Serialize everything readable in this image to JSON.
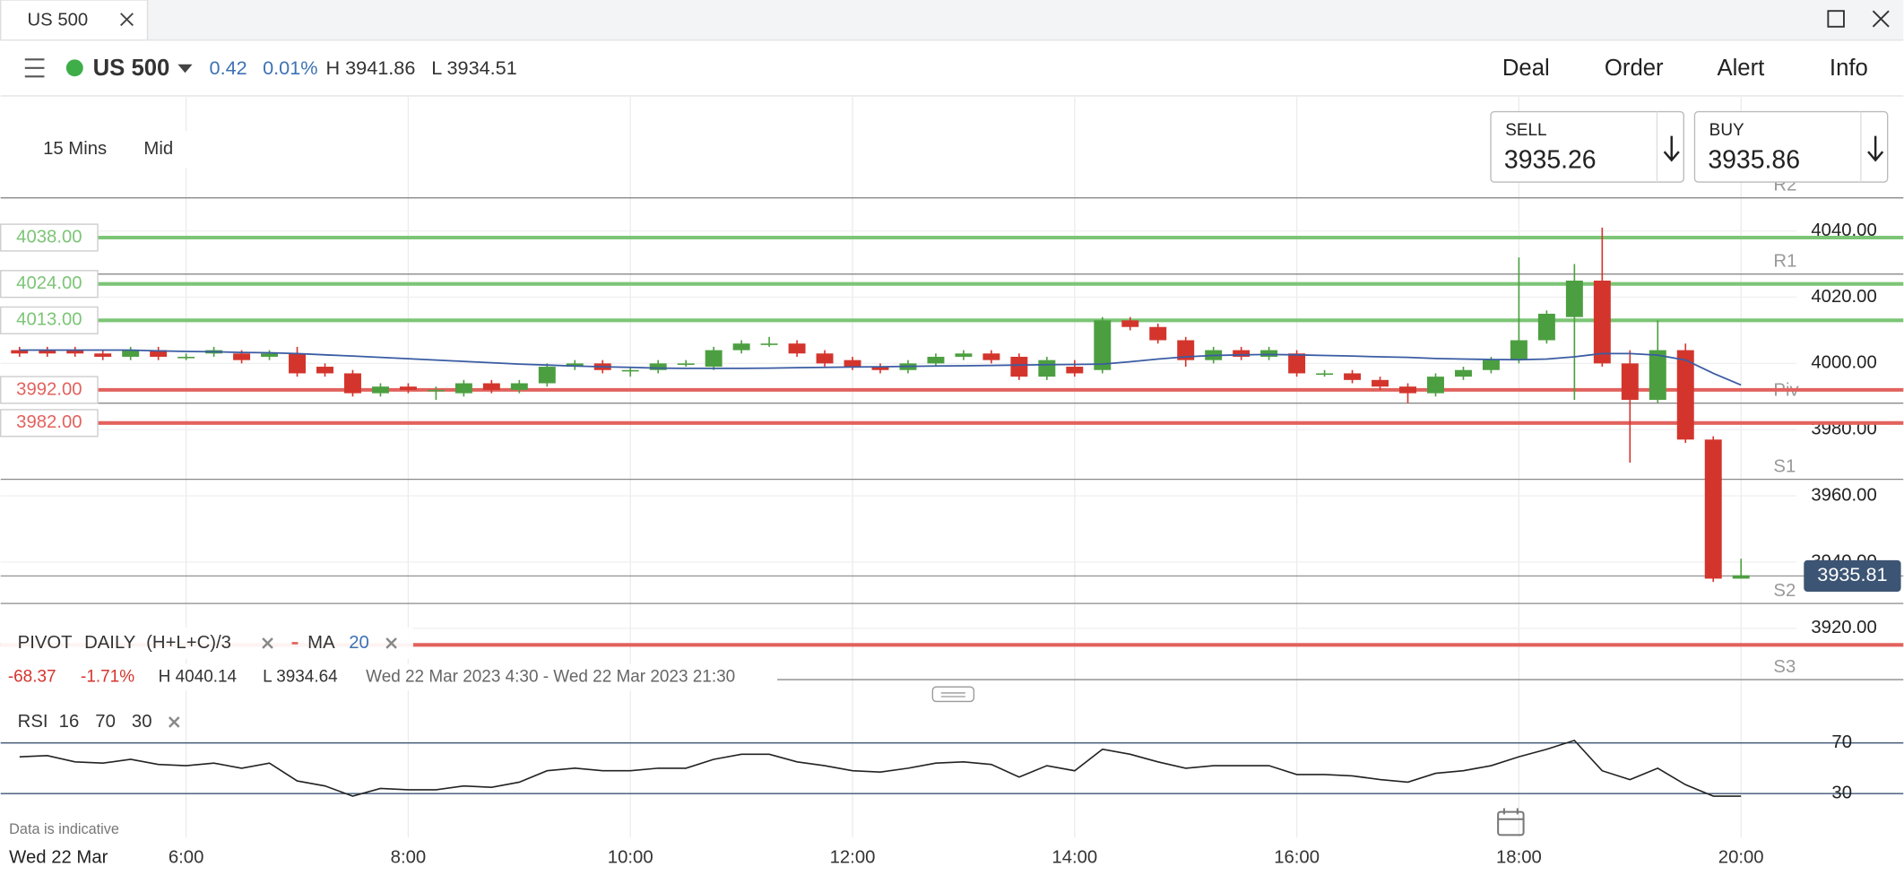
{
  "tab": {
    "title": "US 500"
  },
  "toolbar": {
    "instrument": "US 500",
    "change": "0.42",
    "change_pct": "0.01%",
    "high": "H 3941.86",
    "low": "L 3934.51",
    "actions": [
      "Deal",
      "Order",
      "Alert",
      "Info"
    ]
  },
  "ticket": {
    "sell_label": "SELL",
    "sell_price": "3935.26",
    "buy_label": "BUY",
    "buy_price": "3935.86"
  },
  "chart_data": {
    "type": "candlestick",
    "interval": "15 Mins",
    "price_type": "Mid",
    "x": [
      4.5,
      4.75,
      5,
      5.25,
      5.5,
      5.75,
      6,
      6.25,
      6.5,
      6.75,
      7,
      7.25,
      7.5,
      7.75,
      8,
      8.25,
      8.5,
      8.75,
      9,
      9.25,
      9.5,
      9.75,
      10,
      10.25,
      10.5,
      10.75,
      11,
      11.25,
      11.5,
      11.75,
      12,
      12.25,
      12.5,
      12.75,
      13,
      13.25,
      13.5,
      13.75,
      14,
      14.25,
      14.5,
      14.75,
      15,
      15.25,
      15.5,
      15.75,
      16,
      16.25,
      16.5,
      16.75,
      17,
      17.25,
      17.5,
      17.75,
      18,
      18.25,
      18.5,
      18.75,
      19,
      19.25,
      19.5,
      19.75,
      20
    ],
    "open": [
      4004,
      4004,
      4004,
      4003,
      4002,
      4004,
      4002,
      4003,
      4003,
      4002,
      4003,
      3999,
      3997,
      3991,
      3993,
      3992,
      3991,
      3994,
      3992,
      3994,
      3999,
      4000,
      3998,
      3998,
      4000,
      3999,
      4004,
      4006,
      4006,
      4003,
      4001,
      3999,
      3998,
      4000,
      4002,
      4003,
      4002,
      3996,
      3999,
      3998,
      4013,
      4011,
      4007,
      4001,
      4004,
      4002,
      4003,
      3997,
      3997,
      3995,
      3993,
      3991,
      3996,
      3998,
      4001,
      4007,
      4014,
      4025,
      4000,
      3989,
      4004,
      3977,
      3935
    ],
    "high": [
      4005,
      4005,
      4005,
      4004,
      4005,
      4005,
      4003,
      4005,
      4004,
      4004,
      4005,
      4000,
      3998,
      3994,
      3994,
      3993,
      3995,
      3995,
      3995,
      4000,
      4001,
      4001,
      3999,
      4001,
      4001,
      4005,
      4007,
      4008,
      4007,
      4004,
      4002,
      4000,
      4001,
      4003,
      4004,
      4004,
      4003,
      4002,
      4001,
      4014,
      4014,
      4012,
      4008,
      4005,
      4005,
      4005,
      4004,
      3998,
      3998,
      3996,
      3994,
      3997,
      3999,
      4002,
      4032,
      4016,
      4030,
      4041,
      4004,
      4013,
      4006,
      3978,
      3941
    ],
    "low": [
      4002,
      4002,
      4002,
      4001,
      4001,
      4001,
      4001,
      4002,
      4000,
      4001,
      3996,
      3996,
      3990,
      3990,
      3991,
      3989,
      3990,
      3991,
      3991,
      3993,
      3998,
      3997,
      3996,
      3997,
      3999,
      3998,
      4003,
      4005,
      4002,
      3999,
      3998,
      3997,
      3997,
      3999,
      4001,
      4000,
      3995,
      3995,
      3996,
      3997,
      4010,
      4006,
      3999,
      4000,
      4001,
      4001,
      3996,
      3996,
      3994,
      3992,
      3988,
      3990,
      3995,
      3997,
      4000,
      4006,
      3989,
      3999,
      3970,
      3988,
      3976,
      3934,
      3935
    ],
    "close": [
      4003,
      4003,
      4003,
      4002,
      4004,
      4002,
      4002,
      4004,
      4001,
      4003,
      3997,
      3997,
      3991,
      3993,
      3992,
      3992,
      3994,
      3992,
      3994,
      3999,
      4000,
      3998,
      3998,
      4000,
      4000,
      4004,
      4006,
      4006,
      4003,
      4000,
      3999,
      3998,
      4000,
      4002,
      4003,
      4001,
      3996,
      4001,
      3997,
      4013,
      4011,
      4007,
      4001,
      4004,
      4002,
      4004,
      3997,
      3997,
      3995,
      3993,
      3991,
      3996,
      3998,
      4001,
      4007,
      4015,
      4025,
      4000,
      3989,
      4004,
      3977,
      3935,
      3936
    ],
    "up_color": "#4c9f40",
    "down_color": "#d3352d",
    "ma": {
      "name": "MA",
      "period": 20,
      "color": "#3a5ca3",
      "values": [
        4004,
        4004,
        4004,
        4004,
        4004,
        4003.8,
        4003.6,
        4003.5,
        4003.3,
        4003.2,
        4003,
        4002.6,
        4002.2,
        4001.8,
        4001.4,
        4001,
        4000.6,
        4000.2,
        3999.8,
        3999.5,
        3999.2,
        3999,
        3998.8,
        3998.6,
        3998.5,
        3998.5,
        3998.5,
        3998.6,
        3998.7,
        3998.8,
        3998.9,
        3999,
        3999.1,
        3999.2,
        3999.3,
        3999.4,
        3999.5,
        3999.6,
        3999.7,
        3999.8,
        4000.5,
        4001.3,
        4002,
        4002.4,
        4002.6,
        4002.7,
        4002.6,
        4002.4,
        4002.2,
        4002,
        4001.8,
        4001.5,
        4001.3,
        4001.2,
        4001.1,
        4001.3,
        4002,
        4003,
        4003,
        4002.5,
        4001,
        3997,
        3993.5
      ]
    },
    "xlim": [
      4.33,
      20.5
    ],
    "xticks": [
      {
        "value": 6,
        "label": "6:00"
      },
      {
        "value": 8,
        "label": "8:00"
      },
      {
        "value": 10,
        "label": "10:00"
      },
      {
        "value": 12,
        "label": "12:00"
      },
      {
        "value": 14,
        "label": "14:00"
      },
      {
        "value": 16,
        "label": "16:00"
      },
      {
        "value": 18,
        "label": "18:00"
      },
      {
        "value": 20,
        "label": "20:00"
      }
    ],
    "ylim": [
      3910,
      4077.5
    ],
    "yticks": [
      {
        "value": 3920,
        "label": "3920.00"
      },
      {
        "value": 3940,
        "label": "3940.00"
      },
      {
        "value": 3960,
        "label": "3960.00"
      },
      {
        "value": 3980,
        "label": "3980.00"
      },
      {
        "value": 4000,
        "label": "4000.00"
      },
      {
        "value": 4020,
        "label": "4020.00"
      },
      {
        "value": 4040,
        "label": "4040.00"
      }
    ],
    "grid": true,
    "pivots": [
      {
        "label": "R2",
        "value": 4050
      },
      {
        "label": "R1",
        "value": 4027
      },
      {
        "label": "Piv",
        "value": 3988
      },
      {
        "label": "S1",
        "value": 3965
      },
      {
        "label": "S2",
        "value": 3927.5
      },
      {
        "label": "S3",
        "value": 3904.5
      }
    ],
    "levels": [
      {
        "value": 4038,
        "label": "4038.00",
        "color": "#7cc576"
      },
      {
        "value": 4024,
        "label": "4024.00",
        "color": "#7cc576"
      },
      {
        "value": 4013,
        "label": "4013.00",
        "color": "#7cc576"
      },
      {
        "value": 3992,
        "label": "3992.00",
        "color": "#e2625e"
      },
      {
        "value": 3982,
        "label": "3982.00",
        "color": "#e2625e"
      },
      {
        "value": 3915,
        "label": null,
        "color": "#e2625e"
      }
    ],
    "last_price": 3935.81,
    "indicator_legend": {
      "pivot": "PIVOT",
      "period": "DAILY",
      "formula": "(H+L+C)/3"
    },
    "stats": {
      "change": "-68.37",
      "change_pct": "-1.71%",
      "high": "H 4040.14",
      "low": "L 3934.64",
      "range": "Wed 22 Mar 2023 4:30 - Wed 22 Mar 2023 21:30"
    },
    "rsi": {
      "name": "RSI",
      "period": 16,
      "color": "#222",
      "ylim": [
        5,
        96
      ],
      "yticks": [
        30,
        70
      ],
      "values": [
        59,
        60,
        55,
        54,
        57,
        53,
        52,
        54,
        50,
        54,
        40,
        36,
        28,
        34,
        33,
        33,
        36,
        35,
        39,
        48,
        50,
        48,
        48,
        50,
        50,
        57,
        61,
        61,
        55,
        52,
        48,
        47,
        50,
        54,
        55,
        53,
        43,
        52,
        48,
        65,
        61,
        55,
        50,
        52,
        52,
        52,
        45,
        45,
        44,
        41,
        39,
        46,
        48,
        52,
        59,
        65,
        72,
        48,
        41,
        50,
        37,
        28,
        28
      ]
    }
  },
  "footer": {
    "note": "Data is indicative",
    "date": "Wed 22 Mar"
  }
}
